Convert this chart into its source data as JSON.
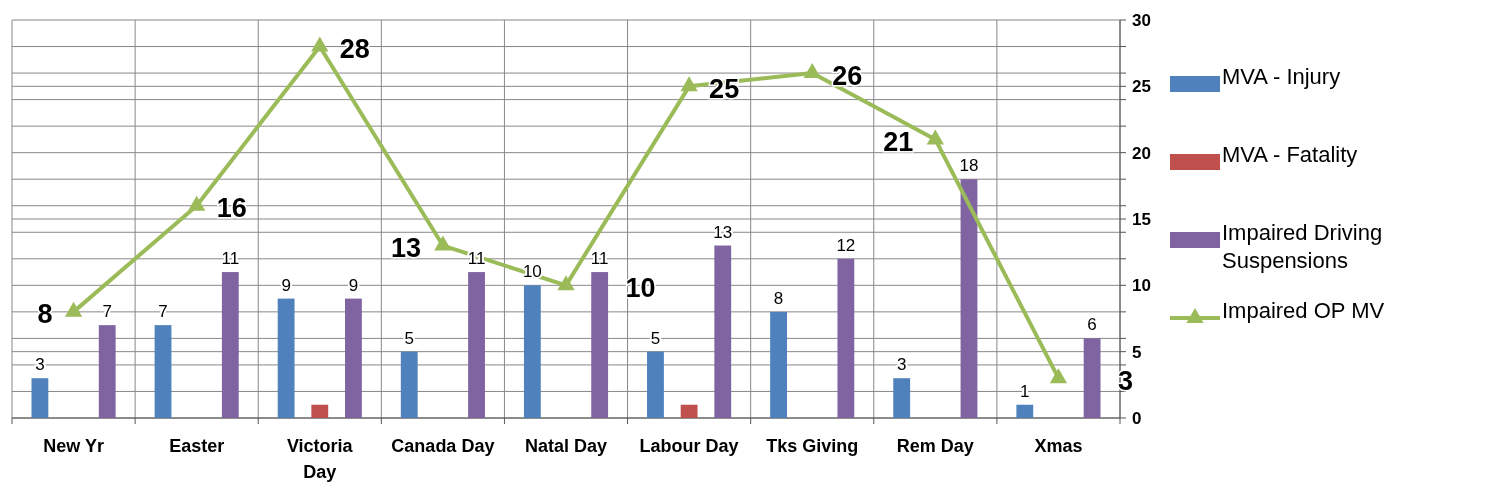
{
  "chart_data": {
    "type": "bar",
    "categories": [
      "New Yr",
      "Easter",
      "Victoria Day",
      "Canada Day",
      "Natal Day",
      "Labour Day",
      "Tks Giving",
      "Rem Day",
      "Xmas"
    ],
    "series": [
      {
        "name": "MVA - Injury",
        "color": "#4f81bd",
        "values": [
          3,
          7,
          9,
          5,
          10,
          5,
          8,
          3,
          1
        ],
        "value_labels": [
          "3",
          "7",
          "9",
          "5",
          "10",
          "5",
          "8",
          "3",
          "1"
        ]
      },
      {
        "name": "MVA - Fatality",
        "color": "#c0504d",
        "values": [
          0,
          0,
          1,
          0,
          0,
          1,
          0,
          0,
          0
        ]
      },
      {
        "name": "Impaired Driving Suspensions",
        "color": "#8064a2",
        "values": [
          7,
          11,
          9,
          11,
          11,
          13,
          12,
          18,
          6
        ],
        "value_labels": [
          "7",
          "11",
          "9",
          "11",
          "11",
          "13",
          "12",
          "18",
          "6"
        ]
      },
      {
        "name": "Impaired OP MV",
        "type": "line",
        "color": "#9bbb59",
        "marker": "triangle",
        "values": [
          8,
          16,
          28,
          13,
          10,
          25,
          26,
          21,
          3
        ],
        "value_labels": [
          "8",
          "16",
          "28",
          "13",
          "10",
          "25",
          "26",
          "21",
          "3"
        ]
      }
    ],
    "ylim": [
      0,
      30
    ],
    "yticks": [
      0,
      {
        "value": 2,
        "label": null
      },
      {
        "value": 4,
        "label": null
      },
      5,
      {
        "value": 6,
        "label": null
      },
      {
        "value": 8,
        "label": null
      },
      10,
      {
        "value": 12,
        "label": null
      },
      {
        "value": 14,
        "label": null
      },
      15,
      {
        "value": 16,
        "label": null
      },
      {
        "value": 18,
        "label": null
      },
      20,
      {
        "value": 22,
        "label": null
      },
      {
        "value": 24,
        "label": null
      },
      25,
      {
        "value": 26,
        "label": null
      },
      {
        "value": 28,
        "label": null
      },
      30
    ],
    "grid": true,
    "legend": "right"
  }
}
